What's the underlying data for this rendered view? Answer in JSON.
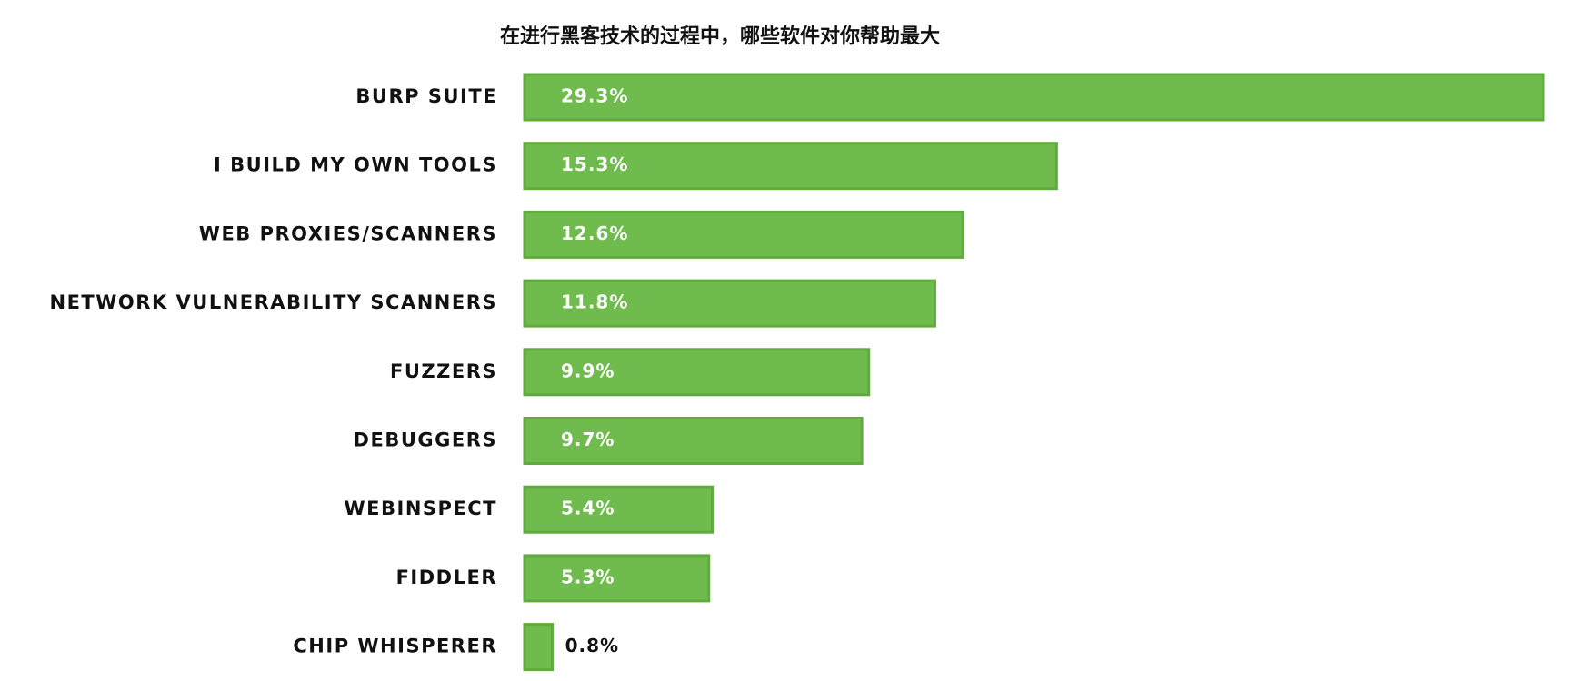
{
  "chart_data": {
    "type": "bar",
    "orientation": "horizontal",
    "title": "在进行黑客技术的过程中，哪些软件对你帮助最大",
    "categories": [
      "BURP SUITE",
      "I BUILD MY OWN TOOLS",
      "WEB PROXIES/SCANNERS",
      "NETWORK VULNERABILITY SCANNERS",
      "FUZZERS",
      "DEBUGGERS",
      "WEBINSPECT",
      "FIDDLER",
      "CHIP WHISPERER"
    ],
    "values": [
      29.3,
      15.3,
      12.6,
      11.8,
      9.9,
      9.7,
      5.4,
      5.3,
      0.8
    ],
    "value_labels": [
      "29.3%",
      "15.3%",
      "12.6%",
      "11.8%",
      "9.9%",
      "9.7%",
      "5.4%",
      "5.3%",
      "0.8%"
    ],
    "color": "#70bb4d"
  }
}
